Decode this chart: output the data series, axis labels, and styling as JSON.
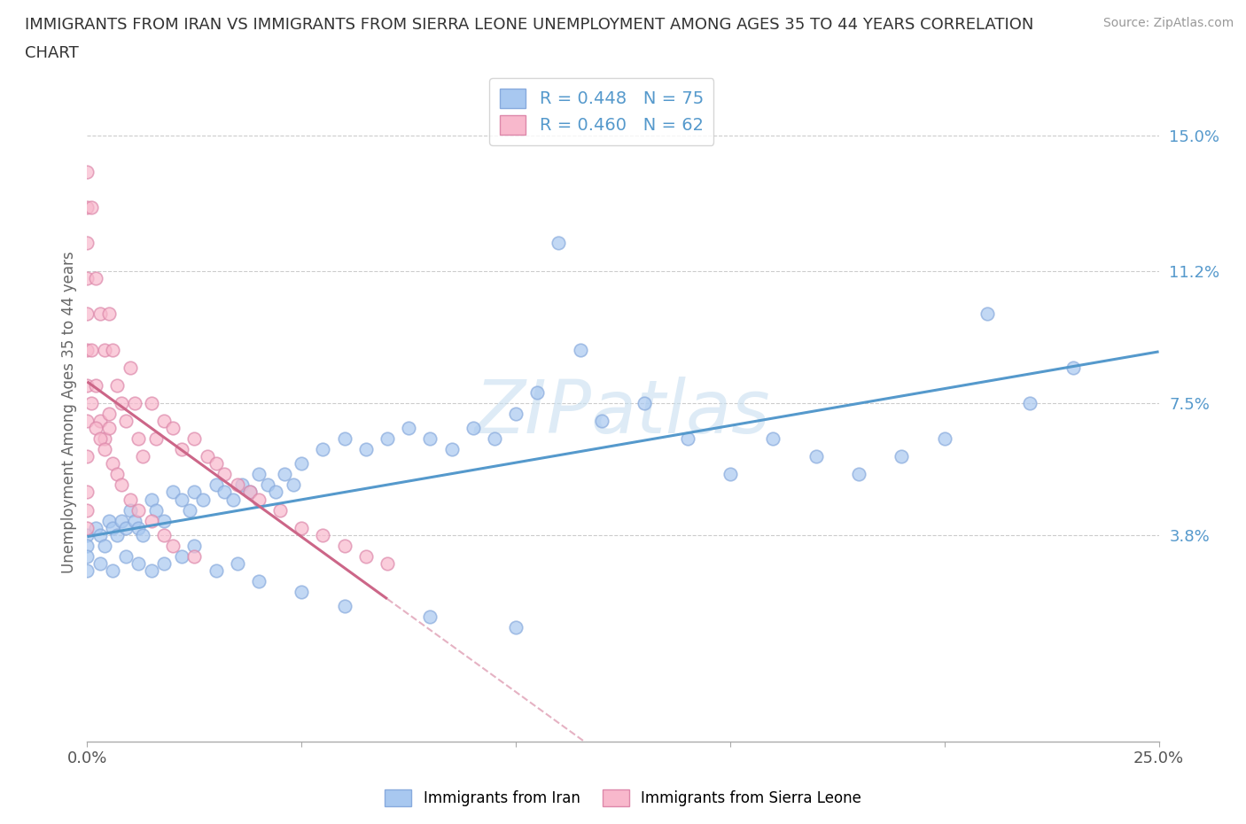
{
  "title_line1": "IMMIGRANTS FROM IRAN VS IMMIGRANTS FROM SIERRA LEONE UNEMPLOYMENT AMONG AGES 35 TO 44 YEARS CORRELATION",
  "title_line2": "CHART",
  "source": "Source: ZipAtlas.com",
  "ylabel": "Unemployment Among Ages 35 to 44 years",
  "xlim": [
    0.0,
    0.25
  ],
  "ylim": [
    -0.02,
    0.165
  ],
  "ytick_positions": [
    0.038,
    0.075,
    0.112,
    0.15
  ],
  "ytick_labels": [
    "3.8%",
    "7.5%",
    "11.2%",
    "15.0%"
  ],
  "iran_R": 0.448,
  "iran_N": 75,
  "sl_R": 0.46,
  "sl_N": 62,
  "iran_color": "#a8c8f0",
  "iran_edge_color": "#88aadd",
  "sl_color": "#f8b8cc",
  "sl_edge_color": "#dd88aa",
  "iran_line_color": "#5599cc",
  "sl_line_color": "#cc6688",
  "legend_text_color": "#5599cc",
  "watermark_color": "#c8dff0",
  "background_color": "#ffffff",
  "grid_color": "#cccccc",
  "iran_x": [
    0.0,
    0.0,
    0.0,
    0.002,
    0.003,
    0.004,
    0.005,
    0.006,
    0.007,
    0.008,
    0.009,
    0.01,
    0.011,
    0.012,
    0.013,
    0.015,
    0.016,
    0.018,
    0.02,
    0.022,
    0.024,
    0.025,
    0.027,
    0.03,
    0.032,
    0.034,
    0.036,
    0.038,
    0.04,
    0.042,
    0.044,
    0.046,
    0.048,
    0.05,
    0.055,
    0.06,
    0.065,
    0.07,
    0.075,
    0.08,
    0.085,
    0.09,
    0.095,
    0.1,
    0.105,
    0.11,
    0.115,
    0.12,
    0.13,
    0.14,
    0.15,
    0.16,
    0.17,
    0.18,
    0.19,
    0.2,
    0.21,
    0.22,
    0.23,
    0.0,
    0.003,
    0.006,
    0.009,
    0.012,
    0.015,
    0.018,
    0.022,
    0.025,
    0.03,
    0.035,
    0.04,
    0.05,
    0.06,
    0.08,
    0.1
  ],
  "iran_y": [
    0.038,
    0.035,
    0.032,
    0.04,
    0.038,
    0.035,
    0.042,
    0.04,
    0.038,
    0.042,
    0.04,
    0.045,
    0.042,
    0.04,
    0.038,
    0.048,
    0.045,
    0.042,
    0.05,
    0.048,
    0.045,
    0.05,
    0.048,
    0.052,
    0.05,
    0.048,
    0.052,
    0.05,
    0.055,
    0.052,
    0.05,
    0.055,
    0.052,
    0.058,
    0.062,
    0.065,
    0.062,
    0.065,
    0.068,
    0.065,
    0.062,
    0.068,
    0.065,
    0.072,
    0.078,
    0.12,
    0.09,
    0.07,
    0.075,
    0.065,
    0.055,
    0.065,
    0.06,
    0.055,
    0.06,
    0.065,
    0.1,
    0.075,
    0.085,
    0.028,
    0.03,
    0.028,
    0.032,
    0.03,
    0.028,
    0.03,
    0.032,
    0.035,
    0.028,
    0.03,
    0.025,
    0.022,
    0.018,
    0.015,
    0.012
  ],
  "sl_x": [
    0.0,
    0.0,
    0.0,
    0.0,
    0.0,
    0.0,
    0.0,
    0.0,
    0.0,
    0.001,
    0.001,
    0.002,
    0.002,
    0.003,
    0.003,
    0.004,
    0.004,
    0.005,
    0.005,
    0.006,
    0.007,
    0.008,
    0.009,
    0.01,
    0.011,
    0.012,
    0.013,
    0.015,
    0.016,
    0.018,
    0.02,
    0.022,
    0.025,
    0.028,
    0.03,
    0.032,
    0.035,
    0.038,
    0.04,
    0.045,
    0.05,
    0.055,
    0.06,
    0.065,
    0.07,
    0.0,
    0.0,
    0.0,
    0.001,
    0.002,
    0.003,
    0.004,
    0.005,
    0.006,
    0.007,
    0.008,
    0.01,
    0.012,
    0.015,
    0.018,
    0.02,
    0.025
  ],
  "sl_y": [
    0.14,
    0.13,
    0.12,
    0.11,
    0.1,
    0.09,
    0.08,
    0.07,
    0.06,
    0.13,
    0.09,
    0.11,
    0.08,
    0.1,
    0.07,
    0.09,
    0.065,
    0.1,
    0.072,
    0.09,
    0.08,
    0.075,
    0.07,
    0.085,
    0.075,
    0.065,
    0.06,
    0.075,
    0.065,
    0.07,
    0.068,
    0.062,
    0.065,
    0.06,
    0.058,
    0.055,
    0.052,
    0.05,
    0.048,
    0.045,
    0.04,
    0.038,
    0.035,
    0.032,
    0.03,
    0.05,
    0.045,
    0.04,
    0.075,
    0.068,
    0.065,
    0.062,
    0.068,
    0.058,
    0.055,
    0.052,
    0.048,
    0.045,
    0.042,
    0.038,
    0.035,
    0.032
  ]
}
